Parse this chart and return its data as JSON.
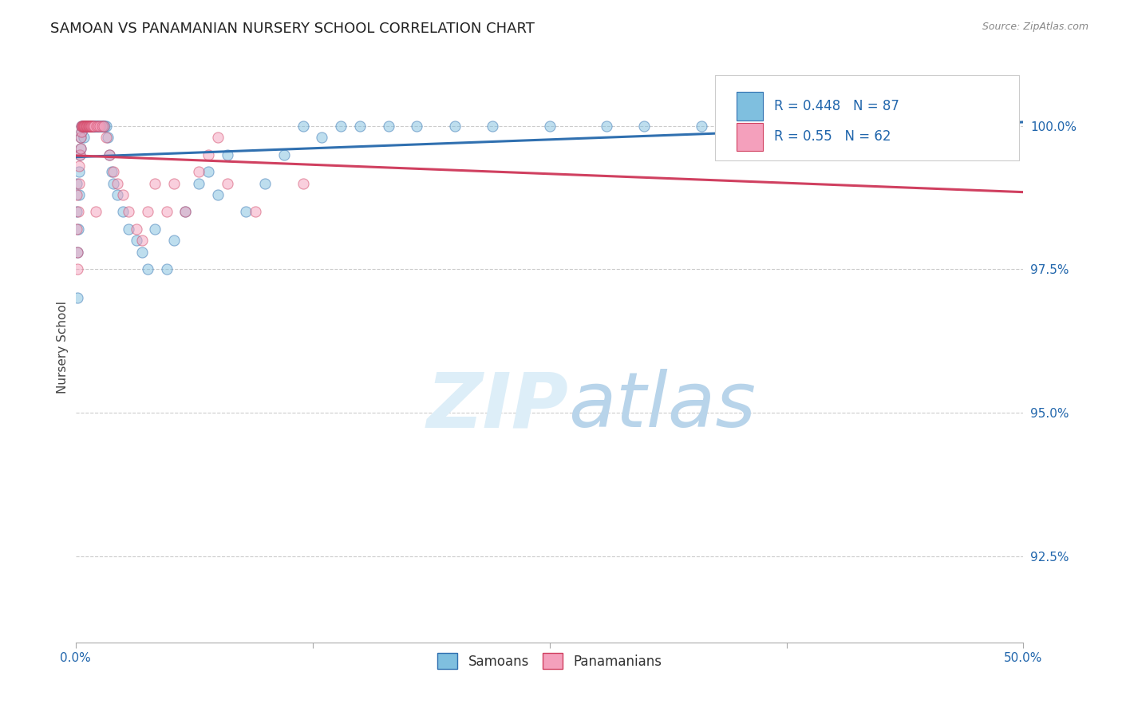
{
  "title": "SAMOAN VS PANAMANIAN NURSERY SCHOOL CORRELATION CHART",
  "source": "Source: ZipAtlas.com",
  "ylabel": "Nursery School",
  "yticks": [
    100.0,
    97.5,
    95.0,
    92.5
  ],
  "ytick_labels": [
    "100.0%",
    "97.5%",
    "95.0%",
    "92.5%"
  ],
  "xmin": 0.0,
  "xmax": 50.0,
  "ymin": 91.0,
  "ymax": 101.3,
  "R_samoan": 0.448,
  "N_samoan": 87,
  "R_panamanian": 0.55,
  "N_panamanian": 62,
  "color_samoan": "#7fbfdf",
  "color_panamanian": "#f4a0bc",
  "line_color_samoan": "#3070b0",
  "line_color_panamanian": "#d04060",
  "legend_label_samoan": "Samoans",
  "legend_label_panamanian": "Panamanians",
  "samoan_x": [
    0.05,
    0.08,
    0.1,
    0.12,
    0.15,
    0.18,
    0.2,
    0.22,
    0.25,
    0.28,
    0.3,
    0.32,
    0.35,
    0.38,
    0.4,
    0.42,
    0.45,
    0.48,
    0.5,
    0.52,
    0.55,
    0.58,
    0.6,
    0.62,
    0.65,
    0.68,
    0.7,
    0.72,
    0.75,
    0.78,
    0.8,
    0.82,
    0.85,
    0.88,
    0.9,
    0.92,
    0.95,
    0.98,
    1.0,
    1.05,
    1.1,
    1.15,
    1.2,
    1.25,
    1.3,
    1.35,
    1.4,
    1.45,
    1.5,
    1.55,
    1.6,
    1.7,
    1.8,
    1.9,
    2.0,
    2.2,
    2.5,
    2.8,
    3.2,
    3.5,
    3.8,
    4.2,
    4.8,
    5.2,
    5.8,
    6.5,
    7.0,
    7.5,
    8.0,
    9.0,
    10.0,
    11.0,
    12.0,
    13.0,
    14.0,
    15.0,
    16.5,
    18.0,
    20.0,
    22.0,
    25.0,
    28.0,
    30.0,
    33.0,
    36.0,
    42.0,
    48.0
  ],
  "samoan_y": [
    99.0,
    98.5,
    97.8,
    97.0,
    98.2,
    98.8,
    99.2,
    99.5,
    99.8,
    99.6,
    99.9,
    100.0,
    100.0,
    100.0,
    100.0,
    99.8,
    100.0,
    100.0,
    100.0,
    100.0,
    100.0,
    100.0,
    100.0,
    100.0,
    100.0,
    100.0,
    100.0,
    100.0,
    100.0,
    100.0,
    100.0,
    100.0,
    100.0,
    100.0,
    100.0,
    100.0,
    100.0,
    100.0,
    100.0,
    100.0,
    100.0,
    100.0,
    100.0,
    100.0,
    100.0,
    100.0,
    100.0,
    100.0,
    100.0,
    100.0,
    100.0,
    99.8,
    99.5,
    99.2,
    99.0,
    98.8,
    98.5,
    98.2,
    98.0,
    97.8,
    97.5,
    98.2,
    97.5,
    98.0,
    98.5,
    99.0,
    99.2,
    98.8,
    99.5,
    98.5,
    99.0,
    99.5,
    100.0,
    99.8,
    100.0,
    100.0,
    100.0,
    100.0,
    100.0,
    100.0,
    100.0,
    100.0,
    100.0,
    100.0,
    100.0,
    100.0,
    100.0
  ],
  "panamanian_x": [
    0.05,
    0.08,
    0.1,
    0.12,
    0.15,
    0.18,
    0.2,
    0.22,
    0.25,
    0.28,
    0.3,
    0.32,
    0.35,
    0.38,
    0.4,
    0.42,
    0.45,
    0.48,
    0.5,
    0.52,
    0.55,
    0.58,
    0.6,
    0.62,
    0.65,
    0.68,
    0.7,
    0.72,
    0.75,
    0.78,
    0.8,
    0.82,
    0.85,
    0.9,
    0.95,
    1.0,
    1.1,
    1.2,
    1.3,
    1.4,
    1.5,
    1.6,
    1.8,
    2.0,
    2.2,
    2.5,
    2.8,
    3.2,
    3.5,
    3.8,
    4.2,
    4.8,
    5.2,
    5.8,
    6.5,
    7.0,
    7.5,
    8.0,
    9.5,
    12.0,
    35.0,
    1.05
  ],
  "panamanian_y": [
    98.8,
    98.2,
    97.5,
    97.8,
    98.5,
    99.0,
    99.3,
    99.5,
    99.8,
    99.6,
    99.9,
    100.0,
    100.0,
    100.0,
    100.0,
    100.0,
    100.0,
    100.0,
    100.0,
    100.0,
    100.0,
    100.0,
    100.0,
    100.0,
    100.0,
    100.0,
    100.0,
    100.0,
    100.0,
    100.0,
    100.0,
    100.0,
    100.0,
    100.0,
    100.0,
    100.0,
    100.0,
    100.0,
    100.0,
    100.0,
    100.0,
    99.8,
    99.5,
    99.2,
    99.0,
    98.8,
    98.5,
    98.2,
    98.0,
    98.5,
    99.0,
    98.5,
    99.0,
    98.5,
    99.2,
    99.5,
    99.8,
    99.0,
    98.5,
    99.0,
    100.0,
    98.5
  ]
}
